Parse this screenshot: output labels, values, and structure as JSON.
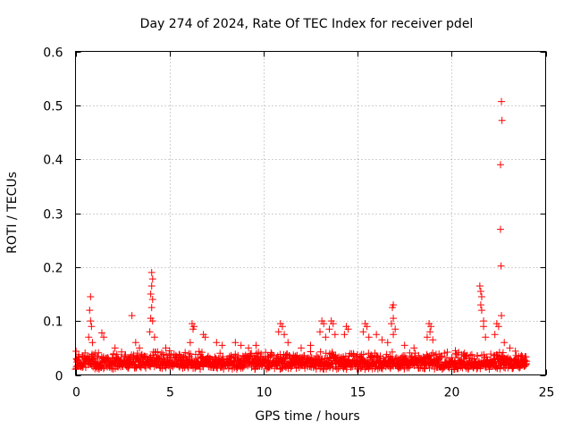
{
  "chart_data": {
    "type": "scatter",
    "title": "Day 274 of 2024, Rate Of TEC Index for receiver pdel",
    "xlabel": "GPS time / hours",
    "ylabel": "ROTI / TECUs",
    "xlim": [
      0,
      25
    ],
    "ylim": [
      0,
      0.6
    ],
    "xticks": [
      0,
      5,
      10,
      15,
      20,
      25
    ],
    "xtick_labels": [
      "0",
      "5",
      "10",
      "15",
      "20",
      "25"
    ],
    "yticks": [
      0,
      0.1,
      0.2,
      0.3,
      0.4,
      0.5,
      0.6
    ],
    "ytick_labels": [
      "0",
      "0.1",
      "0.2",
      "0.3",
      "0.4",
      "0.5",
      "0.6"
    ],
    "grid": true,
    "marker": "plus",
    "color": "#ff0000",
    "series": [
      {
        "name": "ROTI",
        "baseline": {
          "x_range": [
            0,
            24
          ],
          "typical_range": [
            0.01,
            0.045
          ]
        },
        "points": [
          [
            0.05,
            0.03
          ],
          [
            0.8,
            0.145
          ],
          [
            0.75,
            0.12
          ],
          [
            0.8,
            0.1
          ],
          [
            0.85,
            0.09
          ],
          [
            0.7,
            0.07
          ],
          [
            0.9,
            0.06
          ],
          [
            1.4,
            0.078
          ],
          [
            1.5,
            0.07
          ],
          [
            2.1,
            0.05
          ],
          [
            3.0,
            0.11
          ],
          [
            3.2,
            0.06
          ],
          [
            3.4,
            0.05
          ],
          [
            4.05,
            0.19
          ],
          [
            4.1,
            0.178
          ],
          [
            4.05,
            0.165
          ],
          [
            4.0,
            0.15
          ],
          [
            4.1,
            0.14
          ],
          [
            4.05,
            0.125
          ],
          [
            4.0,
            0.105
          ],
          [
            4.1,
            0.1
          ],
          [
            3.95,
            0.08
          ],
          [
            4.2,
            0.07
          ],
          [
            4.8,
            0.05
          ],
          [
            5.0,
            0.045
          ],
          [
            6.2,
            0.095
          ],
          [
            6.3,
            0.09
          ],
          [
            6.25,
            0.085
          ],
          [
            6.1,
            0.06
          ],
          [
            6.8,
            0.075
          ],
          [
            6.9,
            0.07
          ],
          [
            7.5,
            0.06
          ],
          [
            7.8,
            0.055
          ],
          [
            8.5,
            0.06
          ],
          [
            8.8,
            0.055
          ],
          [
            9.2,
            0.05
          ],
          [
            9.6,
            0.055
          ],
          [
            10.9,
            0.095
          ],
          [
            11.0,
            0.09
          ],
          [
            10.8,
            0.08
          ],
          [
            11.1,
            0.075
          ],
          [
            11.3,
            0.06
          ],
          [
            12.0,
            0.05
          ],
          [
            12.5,
            0.055
          ],
          [
            13.1,
            0.1
          ],
          [
            13.2,
            0.095
          ],
          [
            13.0,
            0.08
          ],
          [
            13.3,
            0.07
          ],
          [
            13.6,
            0.1
          ],
          [
            13.7,
            0.095
          ],
          [
            13.5,
            0.085
          ],
          [
            13.8,
            0.075
          ],
          [
            14.4,
            0.09
          ],
          [
            14.5,
            0.085
          ],
          [
            14.3,
            0.075
          ],
          [
            15.4,
            0.095
          ],
          [
            15.5,
            0.09
          ],
          [
            15.3,
            0.08
          ],
          [
            15.6,
            0.07
          ],
          [
            16.0,
            0.075
          ],
          [
            16.3,
            0.065
          ],
          [
            16.6,
            0.06
          ],
          [
            16.9,
            0.13
          ],
          [
            16.85,
            0.125
          ],
          [
            16.9,
            0.105
          ],
          [
            16.8,
            0.095
          ],
          [
            17.0,
            0.085
          ],
          [
            16.9,
            0.075
          ],
          [
            17.5,
            0.055
          ],
          [
            18.0,
            0.05
          ],
          [
            18.8,
            0.095
          ],
          [
            18.9,
            0.09
          ],
          [
            18.85,
            0.08
          ],
          [
            18.7,
            0.07
          ],
          [
            19.0,
            0.065
          ],
          [
            20.2,
            0.045
          ],
          [
            20.7,
            0.035
          ],
          [
            21.5,
            0.165
          ],
          [
            21.55,
            0.155
          ],
          [
            21.6,
            0.145
          ],
          [
            21.55,
            0.13
          ],
          [
            21.6,
            0.12
          ],
          [
            21.7,
            0.1
          ],
          [
            21.7,
            0.09
          ],
          [
            21.8,
            0.07
          ],
          [
            22.4,
            0.095
          ],
          [
            22.5,
            0.09
          ],
          [
            22.3,
            0.075
          ],
          [
            22.65,
            0.507
          ],
          [
            22.68,
            0.472
          ],
          [
            22.6,
            0.39
          ],
          [
            22.6,
            0.27
          ],
          [
            22.63,
            0.202
          ],
          [
            22.65,
            0.11
          ],
          [
            22.8,
            0.06
          ],
          [
            23.1,
            0.05
          ],
          [
            23.5,
            0.03
          ],
          [
            23.9,
            0.025
          ]
        ]
      }
    ]
  }
}
